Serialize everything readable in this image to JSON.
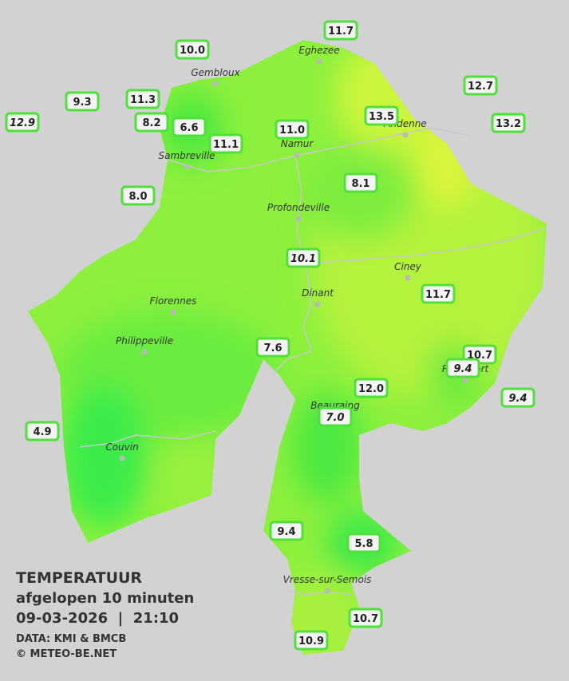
{
  "legend": {
    "title": "TEMPERATUUR",
    "subtitle": "afgelopen 10 minuten",
    "timestamp": "09-03-2026  |  21:10",
    "source": "DATA: KMI & BMCB",
    "credit": "© METEO-BE.NET"
  },
  "cities": [
    "Eghezee",
    "Gembloux",
    "Andenne",
    "Namur",
    "Sambreville",
    "Profondeville",
    "Ciney",
    "Dinant",
    "Florennes",
    "Philippeville",
    "Rochefort",
    "Beauraing",
    "Couvin",
    "Vresse-sur-Semois"
  ],
  "stations": [
    {
      "value": "11.7"
    },
    {
      "value": "10.0"
    },
    {
      "value": "9.3"
    },
    {
      "value": "11.3"
    },
    {
      "value": "12.9",
      "italic": true
    },
    {
      "value": "8.2"
    },
    {
      "value": "6.6"
    },
    {
      "value": "11.0"
    },
    {
      "value": "13.5"
    },
    {
      "value": "12.7"
    },
    {
      "value": "13.2"
    },
    {
      "value": "11.1"
    },
    {
      "value": "8.1"
    },
    {
      "value": "8.0"
    },
    {
      "value": "10.1",
      "italic": true
    },
    {
      "value": "11.7"
    },
    {
      "value": "7.6"
    },
    {
      "value": "10.7"
    },
    {
      "value": "9.4",
      "italic": true
    },
    {
      "value": "9.4",
      "italic": true
    },
    {
      "value": "12.0"
    },
    {
      "value": "7.0",
      "italic": true
    },
    {
      "value": "4.9"
    },
    {
      "value": "9.4"
    },
    {
      "value": "5.8"
    },
    {
      "value": "10.7"
    },
    {
      "value": "10.9"
    }
  ]
}
